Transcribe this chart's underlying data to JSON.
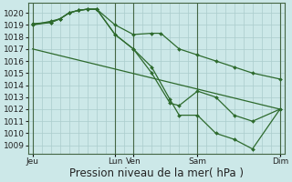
{
  "background_color": "#cce8e8",
  "grid_color": "#aacccc",
  "line_color": "#2d6a2d",
  "marker_color": "#2d6a2d",
  "ylim": [
    1008.3,
    1020.8
  ],
  "yticks": [
    1009,
    1010,
    1011,
    1012,
    1013,
    1014,
    1015,
    1016,
    1017,
    1018,
    1019,
    1020
  ],
  "xlabel": "Pression niveau de la mer( hPa )",
  "xlabel_fontsize": 8.5,
  "tick_fontsize": 6.5,
  "xtick_label_names": [
    "Jeu",
    "Lun",
    "Ven",
    "Sam",
    "Dim"
  ],
  "xtick_label_positions": [
    0,
    9,
    11,
    18,
    27
  ],
  "xtick_vline_positions": [
    0,
    9,
    11,
    18,
    27
  ],
  "xlim": [
    -0.5,
    27.5
  ],
  "series_no_marker": [
    [
      0,
      1017.0
    ],
    [
      27,
      1012.0
    ]
  ],
  "series": [
    {
      "points": [
        [
          0,
          1019.0
        ],
        [
          2,
          1019.2
        ],
        [
          3,
          1019.5
        ],
        [
          4,
          1020.0
        ],
        [
          5,
          1020.2
        ],
        [
          6,
          1020.3
        ],
        [
          7,
          1020.3
        ],
        [
          9,
          1019.0
        ],
        [
          11,
          1018.2
        ],
        [
          13,
          1018.3
        ],
        [
          14,
          1018.3
        ],
        [
          16,
          1017.0
        ],
        [
          18,
          1016.5
        ],
        [
          20,
          1016.0
        ],
        [
          22,
          1015.5
        ],
        [
          24,
          1015.0
        ],
        [
          27,
          1014.5
        ]
      ],
      "has_marker": true
    },
    {
      "points": [
        [
          0,
          1019.0
        ],
        [
          2,
          1019.3
        ],
        [
          3,
          1019.5
        ],
        [
          4,
          1020.0
        ],
        [
          5,
          1020.2
        ],
        [
          6,
          1020.3
        ],
        [
          7,
          1020.3
        ],
        [
          9,
          1018.2
        ],
        [
          11,
          1017.0
        ],
        [
          13,
          1015.0
        ],
        [
          15,
          1012.5
        ],
        [
          16,
          1012.3
        ],
        [
          18,
          1013.5
        ],
        [
          20,
          1013.0
        ],
        [
          22,
          1011.5
        ],
        [
          24,
          1011.0
        ],
        [
          27,
          1012.0
        ]
      ],
      "has_marker": true
    },
    {
      "points": [
        [
          0,
          1019.1
        ],
        [
          2,
          1019.2
        ],
        [
          3,
          1019.5
        ],
        [
          4,
          1020.0
        ],
        [
          5,
          1020.2
        ],
        [
          6,
          1020.3
        ],
        [
          7,
          1020.3
        ],
        [
          9,
          1018.2
        ],
        [
          11,
          1017.0
        ],
        [
          13,
          1015.5
        ],
        [
          15,
          1012.8
        ],
        [
          16,
          1011.5
        ],
        [
          18,
          1011.5
        ],
        [
          20,
          1010.0
        ],
        [
          22,
          1009.5
        ],
        [
          24,
          1008.7
        ],
        [
          27,
          1012.0
        ]
      ],
      "has_marker": true
    }
  ],
  "diagonal_series": {
    "points": [
      [
        0,
        1017.0
      ],
      [
        27,
        1012.0
      ]
    ],
    "has_marker": false
  }
}
